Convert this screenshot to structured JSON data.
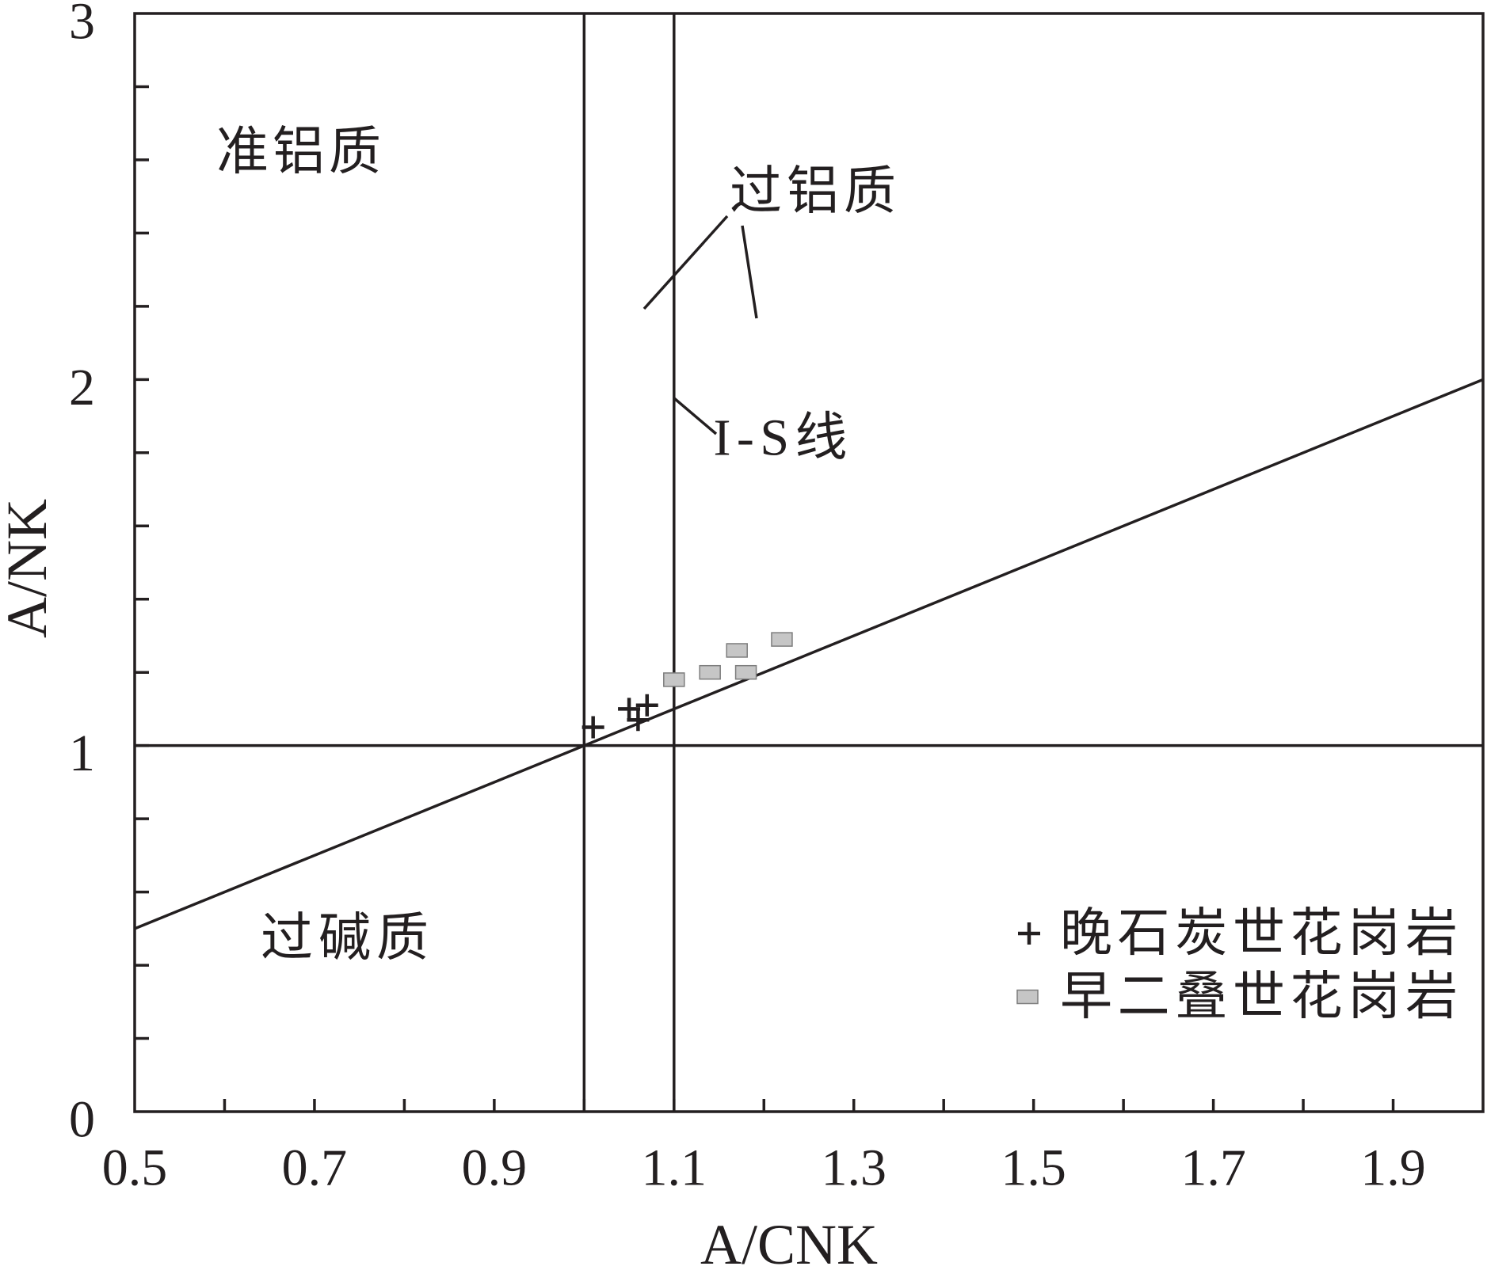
{
  "chart_data": {
    "type": "scatter",
    "xlabel": "A/CNK",
    "ylabel": "A/NK",
    "xlim": [
      0.5,
      2.0
    ],
    "ylim": [
      0,
      3
    ],
    "x_tick_step": 0.1,
    "y_tick_step": 0.2,
    "x_tick_labels": [
      "0.5",
      "0.7",
      "0.9",
      "1.1",
      "1.3",
      "1.5",
      "1.7",
      "1.9"
    ],
    "y_tick_labels": [
      "0",
      "1",
      "2",
      "3"
    ],
    "grid": false,
    "legend_position": "bottom-right",
    "reference_lines": {
      "vertical_x": [
        1.0,
        1.1
      ],
      "horizontal_y": [
        1.0
      ],
      "diagonal": [
        [
          0.5,
          0.5
        ],
        [
          2.0,
          2.0
        ]
      ]
    },
    "annotations": {
      "metaluminous": "准铝质",
      "peraluminous": "过铝质",
      "peralkaline": "过碱质",
      "is_line": "I-S线"
    },
    "series": [
      {
        "name": "晚石炭世花岗岩",
        "marker": "plus",
        "color": "#231f20",
        "x": [
          1.01,
          1.05,
          1.06,
          1.07
        ],
        "y": [
          1.05,
          1.1,
          1.07,
          1.11
        ]
      },
      {
        "name": "早二叠世花岗岩",
        "marker": "square",
        "color": "#c6c6c6",
        "x": [
          1.1,
          1.14,
          1.18,
          1.17,
          1.22
        ],
        "y": [
          1.18,
          1.2,
          1.2,
          1.26,
          1.29
        ]
      }
    ]
  }
}
